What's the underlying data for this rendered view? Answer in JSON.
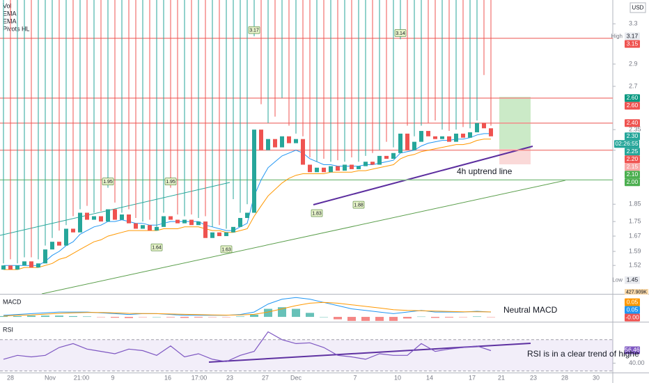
{
  "chart_data": [
    {
      "type": "candlestick",
      "volume_name": "Vol",
      "pivots_name": "Pivots HL",
      "currency": "USD",
      "log": true,
      "ylim": [
        1.4,
        3.53
      ],
      "xlim": [
        -0.5,
        87.5
      ],
      "yticks": [
        1.52,
        1.59,
        1.67,
        1.75,
        1.85,
        2.2,
        2.35,
        2.7,
        2.9,
        3.3
      ],
      "xticks": [
        {
          "value": 1,
          "label": "28"
        },
        {
          "value": 6.7,
          "label": "Nov"
        },
        {
          "value": 11.2,
          "label": "21:00"
        },
        {
          "value": 15.7,
          "label": "9"
        },
        {
          "value": 23.6,
          "label": "16"
        },
        {
          "value": 28.1,
          "label": "17:00"
        },
        {
          "value": 32.5,
          "label": "23"
        },
        {
          "value": 37.6,
          "label": "27"
        },
        {
          "value": 42,
          "label": "Dec"
        },
        {
          "value": 50.5,
          "label": "7"
        },
        {
          "value": 56.6,
          "label": "10"
        },
        {
          "value": 61.2,
          "label": "14"
        },
        {
          "value": 67.3,
          "label": "17"
        },
        {
          "value": 71.5,
          "label": "21"
        },
        {
          "value": 76.1,
          "label": "23"
        },
        {
          "value": 80.6,
          "label": "28"
        },
        {
          "value": 85.1,
          "label": "30"
        }
      ],
      "up_color": "#26a69a",
      "down_color": "#ef5350",
      "open": [
        1.5,
        1.52,
        1.5,
        1.52,
        1.54,
        1.51,
        1.53,
        1.6,
        1.64,
        1.62,
        1.71,
        1.69,
        1.8,
        1.76,
        1.78,
        1.75,
        1.82,
        1.76,
        1.79,
        1.74,
        1.71,
        1.73,
        1.7,
        1.72,
        1.78,
        1.76,
        1.74,
        1.76,
        1.73,
        1.75,
        1.66,
        1.69,
        1.67,
        1.69,
        1.72,
        1.77,
        1.8,
        2.35,
        2.2,
        2.28,
        2.22,
        2.3,
        2.25,
        2.28,
        2.1,
        2.05,
        2.08,
        2.05,
        2.09,
        2.06,
        2.1,
        2.07,
        2.09,
        2.12,
        2.1,
        2.16,
        2.14,
        2.18,
        2.32,
        2.2,
        2.26,
        2.34,
        2.3,
        2.28,
        2.3,
        2.26,
        2.32,
        2.29,
        2.33,
        2.4,
        2.36
      ],
      "high": [
        1.53,
        1.55,
        1.53,
        1.56,
        1.56,
        1.55,
        1.62,
        1.66,
        1.7,
        1.73,
        1.78,
        1.82,
        1.84,
        1.8,
        1.81,
        1.95,
        1.86,
        1.8,
        1.82,
        1.77,
        1.75,
        1.76,
        1.72,
        1.8,
        1.95,
        1.79,
        1.78,
        1.79,
        1.77,
        1.78,
        1.72,
        1.73,
        1.71,
        1.88,
        1.8,
        1.85,
        3.17,
        2.55,
        2.4,
        2.45,
        2.6,
        2.38,
        2.32,
        2.3,
        2.15,
        2.12,
        2.14,
        2.12,
        2.13,
        2.12,
        2.15,
        2.12,
        2.16,
        2.18,
        2.2,
        2.26,
        2.22,
        3.14,
        2.38,
        2.3,
        2.38,
        2.4,
        2.42,
        2.35,
        2.34,
        2.35,
        2.37,
        2.36,
        2.42,
        2.8,
        2.38
      ],
      "low": {
        "tag": "Low",
        "value": 1.45,
        "label": "1.45"
      },
      "close": [
        1.52,
        1.5,
        1.52,
        1.54,
        1.51,
        1.53,
        1.6,
        1.64,
        1.62,
        1.71,
        1.69,
        1.8,
        1.76,
        1.78,
        1.75,
        1.82,
        1.76,
        1.79,
        1.74,
        1.71,
        1.73,
        1.7,
        1.72,
        1.78,
        1.76,
        1.74,
        1.76,
        1.73,
        1.75,
        1.66,
        1.69,
        1.67,
        1.69,
        1.72,
        1.77,
        1.8,
        2.35,
        2.2,
        2.28,
        2.22,
        2.3,
        2.25,
        2.28,
        2.1,
        2.05,
        2.08,
        2.05,
        2.09,
        2.06,
        2.1,
        2.07,
        2.09,
        2.12,
        2.1,
        2.16,
        2.14,
        2.18,
        2.32,
        2.2,
        2.26,
        2.34,
        2.3,
        2.28,
        2.3,
        2.26,
        2.32,
        2.29,
        2.33,
        2.4,
        2.36,
        2.3
      ],
      "series": [
        {
          "name": "EMA",
          "color": "#2196f3",
          "values": [
            1.52,
            1.52,
            1.52,
            1.52,
            1.52,
            1.52,
            1.54,
            1.57,
            1.59,
            1.62,
            1.64,
            1.68,
            1.7,
            1.72,
            1.73,
            1.75,
            1.75,
            1.76,
            1.75,
            1.74,
            1.74,
            1.73,
            1.73,
            1.74,
            1.75,
            1.75,
            1.75,
            1.75,
            1.75,
            1.73,
            1.72,
            1.71,
            1.7,
            1.7,
            1.72,
            1.74,
            1.9,
            2.0,
            2.08,
            2.12,
            2.16,
            2.18,
            2.2,
            2.18,
            2.14,
            2.12,
            2.1,
            2.1,
            2.09,
            2.09,
            2.09,
            2.09,
            2.1,
            2.1,
            2.11,
            2.12,
            2.13,
            2.18,
            2.19,
            2.2,
            2.23,
            2.25,
            2.26,
            2.27,
            2.27,
            2.28,
            2.28,
            2.29,
            2.31,
            2.32,
            2.32
          ]
        },
        {
          "name": "EMA",
          "color": "#ff9800",
          "values": [
            1.5,
            1.5,
            1.5,
            1.51,
            1.51,
            1.51,
            1.52,
            1.53,
            1.55,
            1.56,
            1.58,
            1.6,
            1.62,
            1.64,
            1.65,
            1.67,
            1.68,
            1.69,
            1.7,
            1.7,
            1.7,
            1.7,
            1.7,
            1.71,
            1.71,
            1.71,
            1.72,
            1.72,
            1.72,
            1.71,
            1.7,
            1.7,
            1.69,
            1.69,
            1.7,
            1.71,
            1.78,
            1.84,
            1.9,
            1.94,
            1.98,
            2.01,
            2.03,
            2.04,
            2.04,
            2.04,
            2.04,
            2.05,
            2.05,
            2.05,
            2.05,
            2.06,
            2.06,
            2.07,
            2.08,
            2.09,
            2.1,
            2.14,
            2.16,
            2.17,
            2.19,
            2.2,
            2.21,
            2.22,
            2.23,
            2.24,
            2.24,
            2.25,
            2.27,
            2.28,
            2.28
          ]
        }
      ],
      "pivots": {
        "x": [
          15,
          24,
          36,
          57,
          22,
          32,
          45,
          51
        ],
        "values": [
          1.95,
          1.95,
          3.17,
          3.14,
          1.64,
          1.63,
          1.83,
          1.88
        ],
        "kinds": [
          "high",
          "high",
          "high",
          "high",
          "low",
          "low",
          "low",
          "low"
        ]
      },
      "levels": [
        {
          "value": 3.15,
          "color": "#f28b88"
        },
        {
          "value": 2.6,
          "color": "#f28b88"
        },
        {
          "value": 2.4,
          "color": "#f28b88"
        },
        {
          "value": 2.2,
          "color": "#f28b88"
        },
        {
          "value": 2.0,
          "color": "#8bc58e"
        }
      ],
      "price_labels": [
        {
          "tag": "High",
          "value": 3.17,
          "label": "3.17",
          "color": "#e9ebf0",
          "text_color": "#131722"
        },
        {
          "value": 3.15,
          "label": "3.15",
          "color": "#ef5350"
        },
        {
          "value": 2.6,
          "label": "2.60",
          "color": "#089981"
        },
        {
          "value": 2.6,
          "label": "2.60",
          "color": "#ef5350"
        },
        {
          "value": 2.4,
          "label": "2.40",
          "color": "#ef5350"
        },
        {
          "value": 2.3,
          "label": "2.30",
          "color": "#26a69a"
        },
        {
          "label": "02:26:55",
          "color": "#26a69a"
        },
        {
          "value": 2.25,
          "label": "2.25",
          "color": "#26a69a"
        },
        {
          "value": 2.2,
          "label": "2.20",
          "color": "#ef5350"
        },
        {
          "value": 2.15,
          "label": "2.15",
          "color": "#f7a9a7"
        },
        {
          "value": 2.1,
          "label": "2.10",
          "color": "#4caf50"
        },
        {
          "value": 2.0,
          "label": "2.00",
          "color": "#4caf50"
        }
      ],
      "volume_label": "427.909K",
      "annotation": "4h uptrend line"
    },
    {
      "type": "macd",
      "title": "MACD",
      "xlim": [
        -0.5,
        87.5
      ],
      "ylim": [
        -0.03,
        0.13
      ],
      "x": [
        0,
        2,
        4,
        6,
        8,
        10,
        12,
        14,
        16,
        18,
        20,
        22,
        24,
        26,
        28,
        30,
        32,
        34,
        36,
        38,
        40,
        42,
        44,
        46,
        48,
        50,
        52,
        54,
        56,
        58,
        60,
        62,
        64,
        66,
        68,
        70
      ],
      "series": [
        {
          "color": "#2196f3",
          "values": [
            0.01,
            0.015,
            0.02,
            0.025,
            0.03,
            0.03,
            0.03,
            0.025,
            0.02,
            0.015,
            0.02,
            0.02,
            0.015,
            0.01,
            0.01,
            0.01,
            0.01,
            0.015,
            0.03,
            0.08,
            0.11,
            0.12,
            0.11,
            0.09,
            0.07,
            0.05,
            0.04,
            0.03,
            0.02,
            0.03,
            0.04,
            0.03,
            0.03,
            0.03,
            0.035,
            0.03
          ]
        },
        {
          "color": "#ff9800",
          "values": [
            0.005,
            0.01,
            0.012,
            0.017,
            0.022,
            0.025,
            0.027,
            0.027,
            0.025,
            0.022,
            0.021,
            0.02,
            0.018,
            0.016,
            0.014,
            0.012,
            0.011,
            0.012,
            0.016,
            0.03,
            0.05,
            0.07,
            0.085,
            0.09,
            0.085,
            0.075,
            0.065,
            0.055,
            0.045,
            0.04,
            0.038,
            0.036,
            0.034,
            0.032,
            0.032,
            0.031
          ]
        }
      ],
      "histogram": [
        0.005,
        0.005,
        0.008,
        0.008,
        0.008,
        0.005,
        0.003,
        -0.002,
        -0.005,
        -0.007,
        -0.001,
        0,
        -0.003,
        -0.006,
        -0.004,
        -0.002,
        -0.001,
        0.003,
        0.014,
        0.05,
        0.06,
        0.05,
        0.025,
        0,
        -0.015,
        -0.025,
        -0.025,
        -0.025,
        -0.025,
        -0.01,
        0.002,
        -0.006,
        -0.004,
        -0.002,
        0.003,
        -0.001
      ],
      "up_color": "#26a69a",
      "down_color": "#ef5350",
      "price_labels": [
        {
          "value": 0.05,
          "label": "0.05",
          "color": "#ff9800"
        },
        {
          "value": 0.05,
          "label": "0.05",
          "color": "#2196f3"
        },
        {
          "value": 0,
          "label": "-0.00",
          "color": "#ef5350"
        }
      ],
      "annotation": "Neutral MACD"
    },
    {
      "type": "rsi",
      "title": "RSI",
      "xlim": [
        -0.5,
        87.5
      ],
      "ylim": [
        28,
        92
      ],
      "band": [
        30,
        70
      ],
      "color": "#7e57c2",
      "yticks": [
        {
          "value": 40,
          "label": "40.00"
        }
      ],
      "x": [
        0,
        2,
        4,
        6,
        8,
        10,
        12,
        14,
        16,
        18,
        20,
        22,
        24,
        26,
        28,
        30,
        32,
        34,
        36,
        38,
        40,
        42,
        44,
        46,
        48,
        50,
        52,
        54,
        56,
        58,
        60,
        62,
        64,
        66,
        68,
        70
      ],
      "values": [
        45,
        50,
        48,
        50,
        60,
        65,
        58,
        55,
        52,
        58,
        56,
        50,
        62,
        48,
        52,
        45,
        42,
        50,
        55,
        80,
        70,
        65,
        66,
        60,
        50,
        48,
        45,
        52,
        50,
        50,
        65,
        55,
        58,
        60,
        62,
        56
      ],
      "price_labels": [
        {
          "value": 56.46,
          "label": "56.46",
          "color": "#7e57c2"
        }
      ],
      "annotation": "RSI is in a clear trend of highe"
    }
  ]
}
